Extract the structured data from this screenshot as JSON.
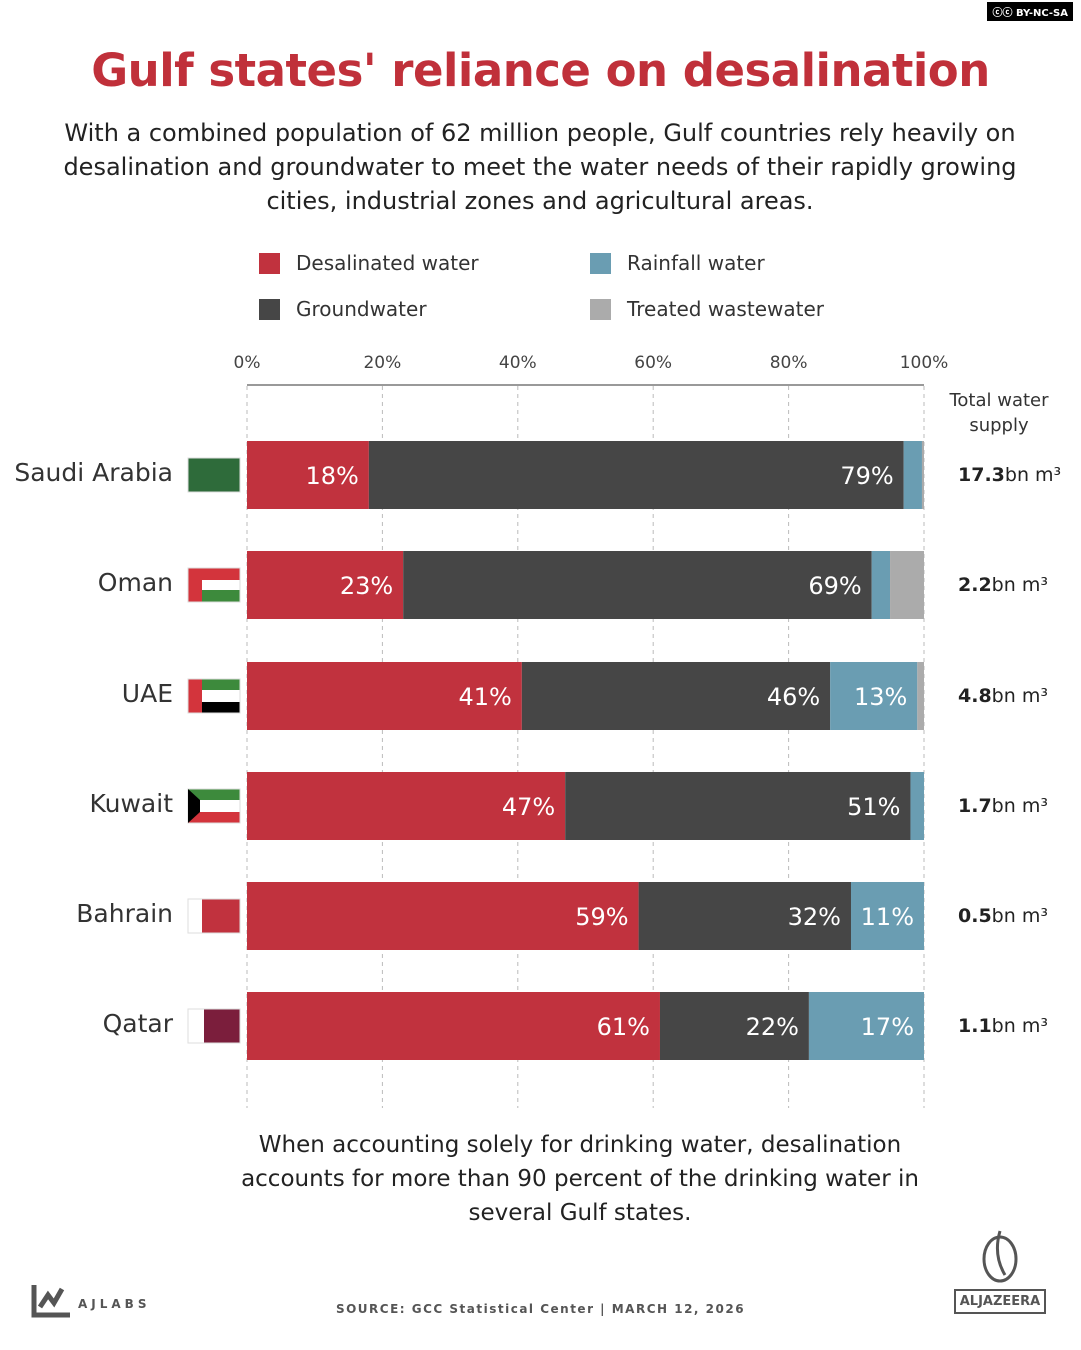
{
  "license_badge": "BY-NC-SA",
  "title": "Gulf states' reliance on desalination",
  "subtitle": "With a combined population of 62 million people, Gulf countries rely heavily on desalination and groundwater to meet the water needs of their rapidly growing cities, industrial zones and agricultural areas.",
  "note": "When accounting solely for drinking water, desalination accounts for more than 90 percent of the drinking water in several Gulf states.",
  "footer": {
    "brand": "AJLABS",
    "source": "SOURCE:  GCC Statistical Center   |   MARCH 12, 2026",
    "logo": "ALJAZEERA"
  },
  "chart_data": {
    "type": "bar",
    "orientation": "horizontal",
    "stacked": true,
    "xlim": [
      0,
      100
    ],
    "ticks": [
      "0%",
      "20%",
      "40%",
      "60%",
      "80%",
      "100%"
    ],
    "grid": true,
    "legend_position": "top",
    "total_header": "Total water supply",
    "categories": [
      "Saudi Arabia",
      "Oman",
      "UAE",
      "Kuwait",
      "Bahrain",
      "Qatar"
    ],
    "series": [
      {
        "name": "Desalinated water",
        "color": "#c1323e",
        "values": [
          18,
          23,
          41,
          47,
          59,
          61
        ],
        "labels": [
          "18%",
          "23%",
          "41%",
          "47%",
          "59%",
          "61%"
        ]
      },
      {
        "name": "Groundwater",
        "color": "#464646",
        "values": [
          79,
          69,
          46,
          51,
          32,
          22
        ],
        "labels": [
          "79%",
          "69%",
          "46%",
          "51%",
          "32%",
          "22%"
        ]
      },
      {
        "name": "Rainfall water",
        "color": "#6a9db2",
        "values": [
          2.7,
          2.7,
          13,
          2,
          11,
          17
        ],
        "labels": [
          "",
          "",
          "13%",
          "",
          "11%",
          "17%"
        ]
      },
      {
        "name": "Treated wastewater",
        "color": "#ababab",
        "values": [
          0.3,
          5,
          1,
          0,
          0,
          0
        ],
        "labels": [
          "",
          "",
          "",
          "",
          "",
          ""
        ]
      }
    ],
    "totals": [
      {
        "value": "17.3",
        "unit": "bn m³"
      },
      {
        "value": "2.2",
        "unit": "bn m³"
      },
      {
        "value": "4.8",
        "unit": "bn m³"
      },
      {
        "value": "1.7",
        "unit": "bn m³"
      },
      {
        "value": "0.5",
        "unit": "bn m³"
      },
      {
        "value": "1.1",
        "unit": "bn m³"
      }
    ]
  }
}
